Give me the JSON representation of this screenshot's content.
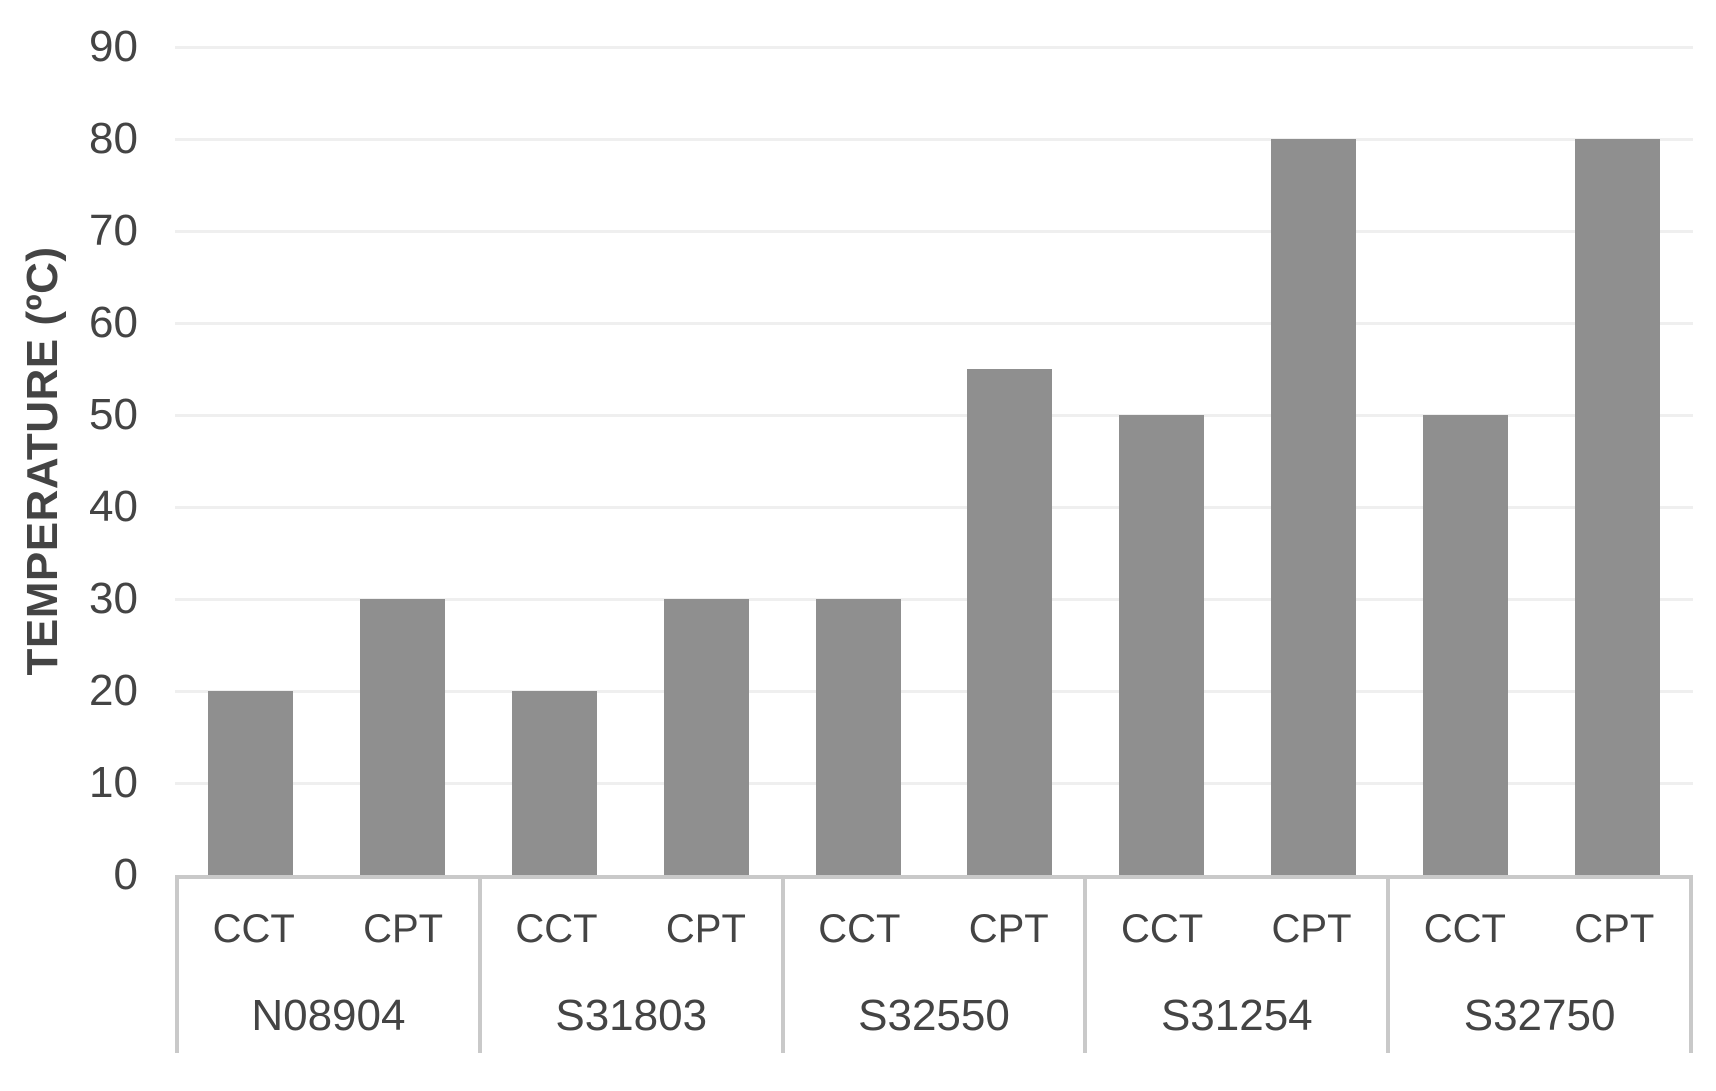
{
  "chart_data": {
    "type": "bar",
    "title": "",
    "xlabel": "",
    "ylabel": "TEMPERATURE (ºC)",
    "ylim": [
      0,
      90
    ],
    "yticks": [
      0,
      10,
      20,
      30,
      40,
      50,
      60,
      70,
      80,
      90
    ],
    "grid": true,
    "legend_position": "none",
    "categories": [
      "N08904",
      "S31803",
      "S32550",
      "S31254",
      "S32750"
    ],
    "sub_categories": [
      "CCT",
      "CPT"
    ],
    "series": [
      {
        "name": "CCT",
        "values": [
          20,
          20,
          30,
          50,
          50
        ]
      },
      {
        "name": "CPT",
        "values": [
          30,
          30,
          55,
          80,
          80
        ]
      }
    ],
    "colors": {
      "bar": "#8f8f8f",
      "gridline": "#efefef",
      "axis_box_border": "#c9c9c9",
      "text": "#444444",
      "background": "#ffffff"
    }
  }
}
